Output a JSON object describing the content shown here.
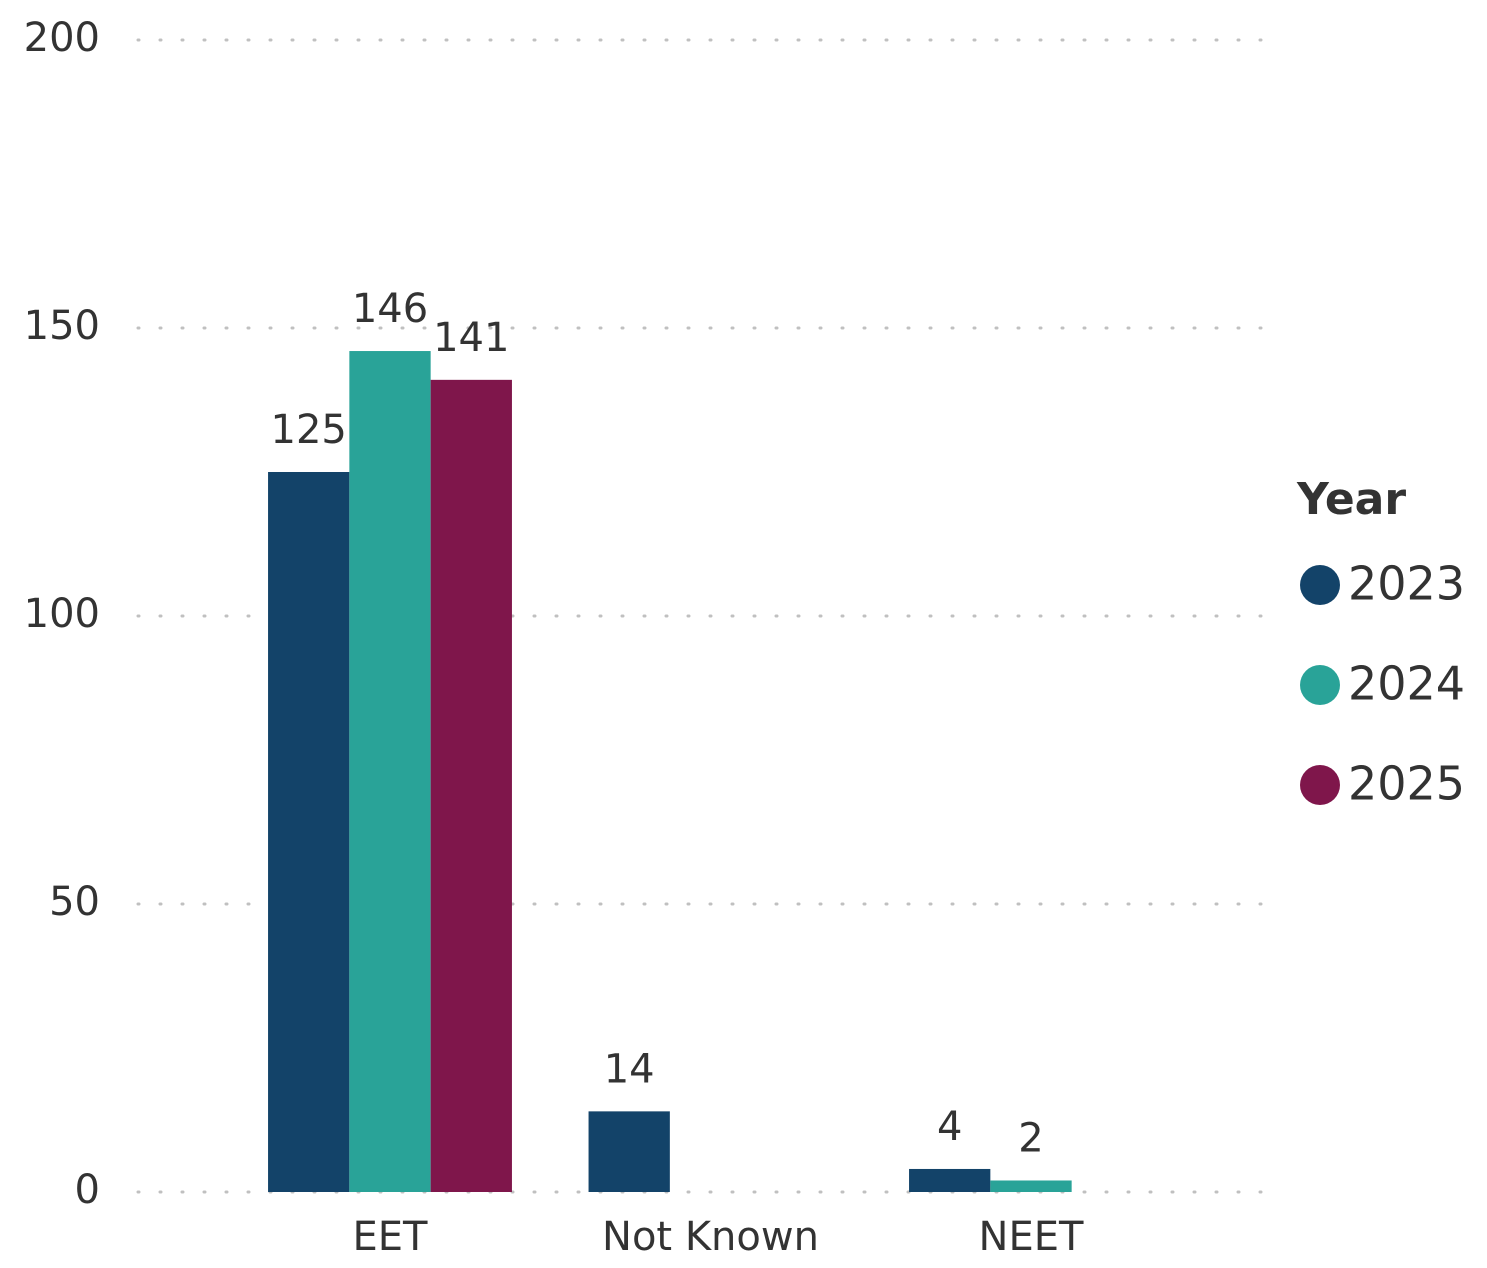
{
  "chart_data": {
    "type": "bar",
    "categories": [
      "EET",
      "Not Known",
      "NEET"
    ],
    "series": [
      {
        "name": "2023",
        "color": "#134369",
        "values": [
          125,
          14,
          4
        ]
      },
      {
        "name": "2024",
        "color": "#29a398",
        "values": [
          146,
          null,
          2
        ]
      },
      {
        "name": "2025",
        "color": "#7f164b",
        "values": [
          141,
          null,
          null
        ]
      }
    ],
    "legend_title": "Year",
    "legend": "right",
    "ylim": [
      0,
      200
    ],
    "yticks": [
      0,
      50,
      100,
      150,
      200
    ],
    "grid": true
  }
}
